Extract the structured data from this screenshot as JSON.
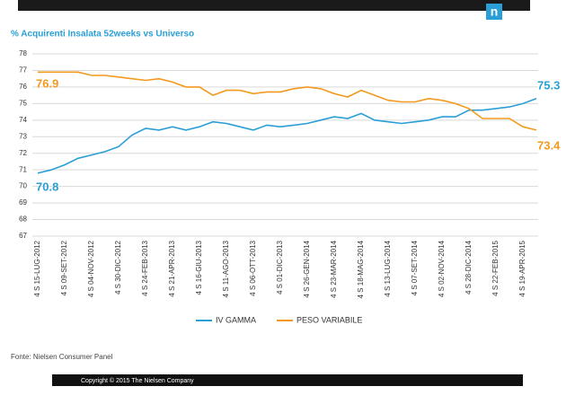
{
  "logo": "n",
  "chart_data": {
    "type": "line",
    "title": "% Acquirenti Insalata 52weeks vs Universo",
    "categories": [
      "4 S 15-LUG-2012",
      null,
      "4 S 09-SET-2012",
      null,
      "4 S 04-NOV-2012",
      null,
      "4 S 30-DIC-2012",
      null,
      "4 S 24-FEB-2013",
      null,
      "4 S 21-APR-2013",
      null,
      "4 S 16-GIU-2013",
      null,
      "4 S 11-AGO-2013",
      null,
      "4 S 06-OTT-2013",
      null,
      "4 S 01-DIC-2013",
      null,
      "4 S 26-GEN-2014",
      null,
      "4 S 23-MAR-2014",
      null,
      "4 S 18-MAG-2014",
      null,
      "4 S 13-LUG-2014",
      null,
      "4 S 07-SET-2014",
      null,
      "4 S 02-NOV-2014",
      null,
      "4 S 28-DIC-2014",
      null,
      "4 S 22-FEB-2015",
      null,
      "4 S 19-APR-2015",
      null
    ],
    "series": [
      {
        "name": "IV GAMMA",
        "color": "#2a9fd6",
        "values": [
          70.8,
          71.0,
          71.3,
          71.7,
          71.9,
          72.1,
          72.4,
          73.1,
          73.5,
          73.4,
          73.6,
          73.4,
          73.6,
          73.9,
          73.8,
          73.6,
          73.4,
          73.7,
          73.6,
          73.7,
          73.8,
          74.0,
          74.2,
          74.1,
          74.4,
          74.0,
          73.9,
          73.8,
          73.9,
          74.0,
          74.2,
          74.2,
          74.6,
          74.6,
          74.7,
          74.8,
          75.0,
          75.3
        ]
      },
      {
        "name": "PESO VARIABILE",
        "color": "#f39a1e",
        "values": [
          76.9,
          76.9,
          76.9,
          76.9,
          76.7,
          76.7,
          76.6,
          76.5,
          76.4,
          76.5,
          76.3,
          76.0,
          76.0,
          75.5,
          75.8,
          75.8,
          75.6,
          75.7,
          75.7,
          75.9,
          76.0,
          75.9,
          75.6,
          75.4,
          75.8,
          75.5,
          75.2,
          75.1,
          75.1,
          75.3,
          75.2,
          75.0,
          74.7,
          74.1,
          74.1,
          74.1,
          73.6,
          73.4
        ]
      }
    ],
    "ylim": [
      67,
      78
    ],
    "yticks": [
      67,
      68,
      69,
      70,
      71,
      72,
      73,
      74,
      75,
      76,
      77,
      78
    ],
    "grid": true,
    "legend": "bottom",
    "source": "Fonte:  Nielsen Consumer Panel",
    "footer": "Copyright © 2015 The Nielsen Company"
  }
}
